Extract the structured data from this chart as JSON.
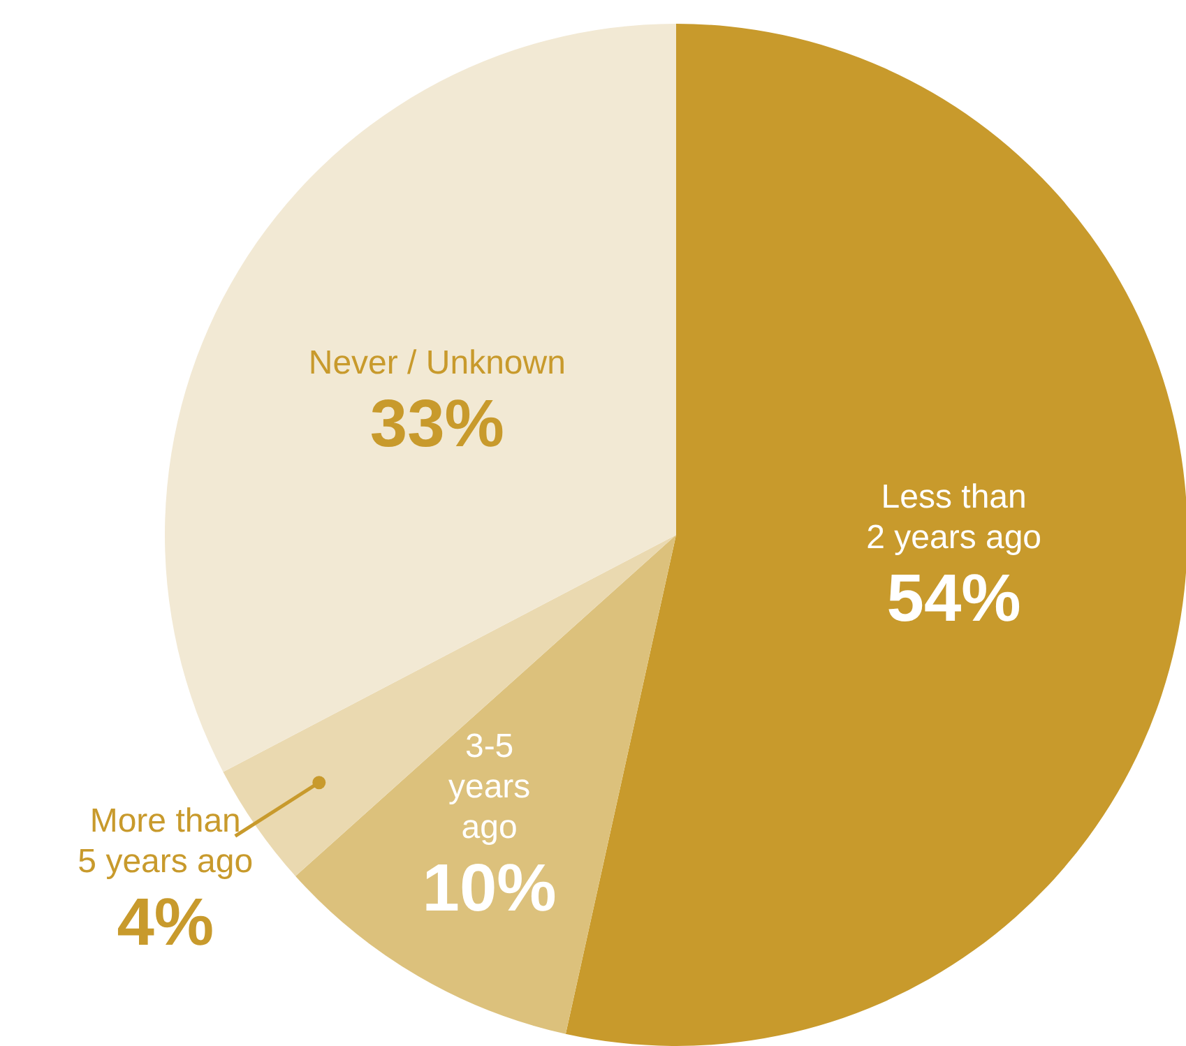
{
  "chart_data": {
    "type": "pie",
    "categories": [
      "Less than 2 years ago",
      "3-5 years ago",
      "More than 5 years ago",
      "Never / Unknown"
    ],
    "values": [
      54,
      10,
      4,
      33
    ],
    "colors": [
      "#c89a2c",
      "#dcc17c",
      "#ead9b0",
      "#f2e9d4"
    ],
    "value_labels": [
      "54%",
      "10%",
      "4%",
      "33%"
    ]
  }
}
